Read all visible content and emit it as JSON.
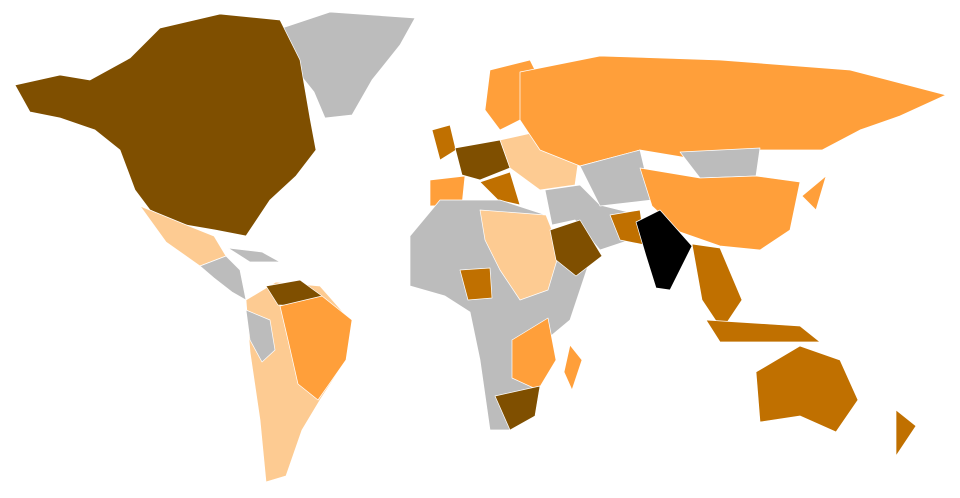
{
  "map": {
    "palette": [
      "#7f4f00",
      "#c07000",
      "#ff9f3a",
      "#fdcb92",
      "#bcbcbc",
      "#000000"
    ]
  }
}
